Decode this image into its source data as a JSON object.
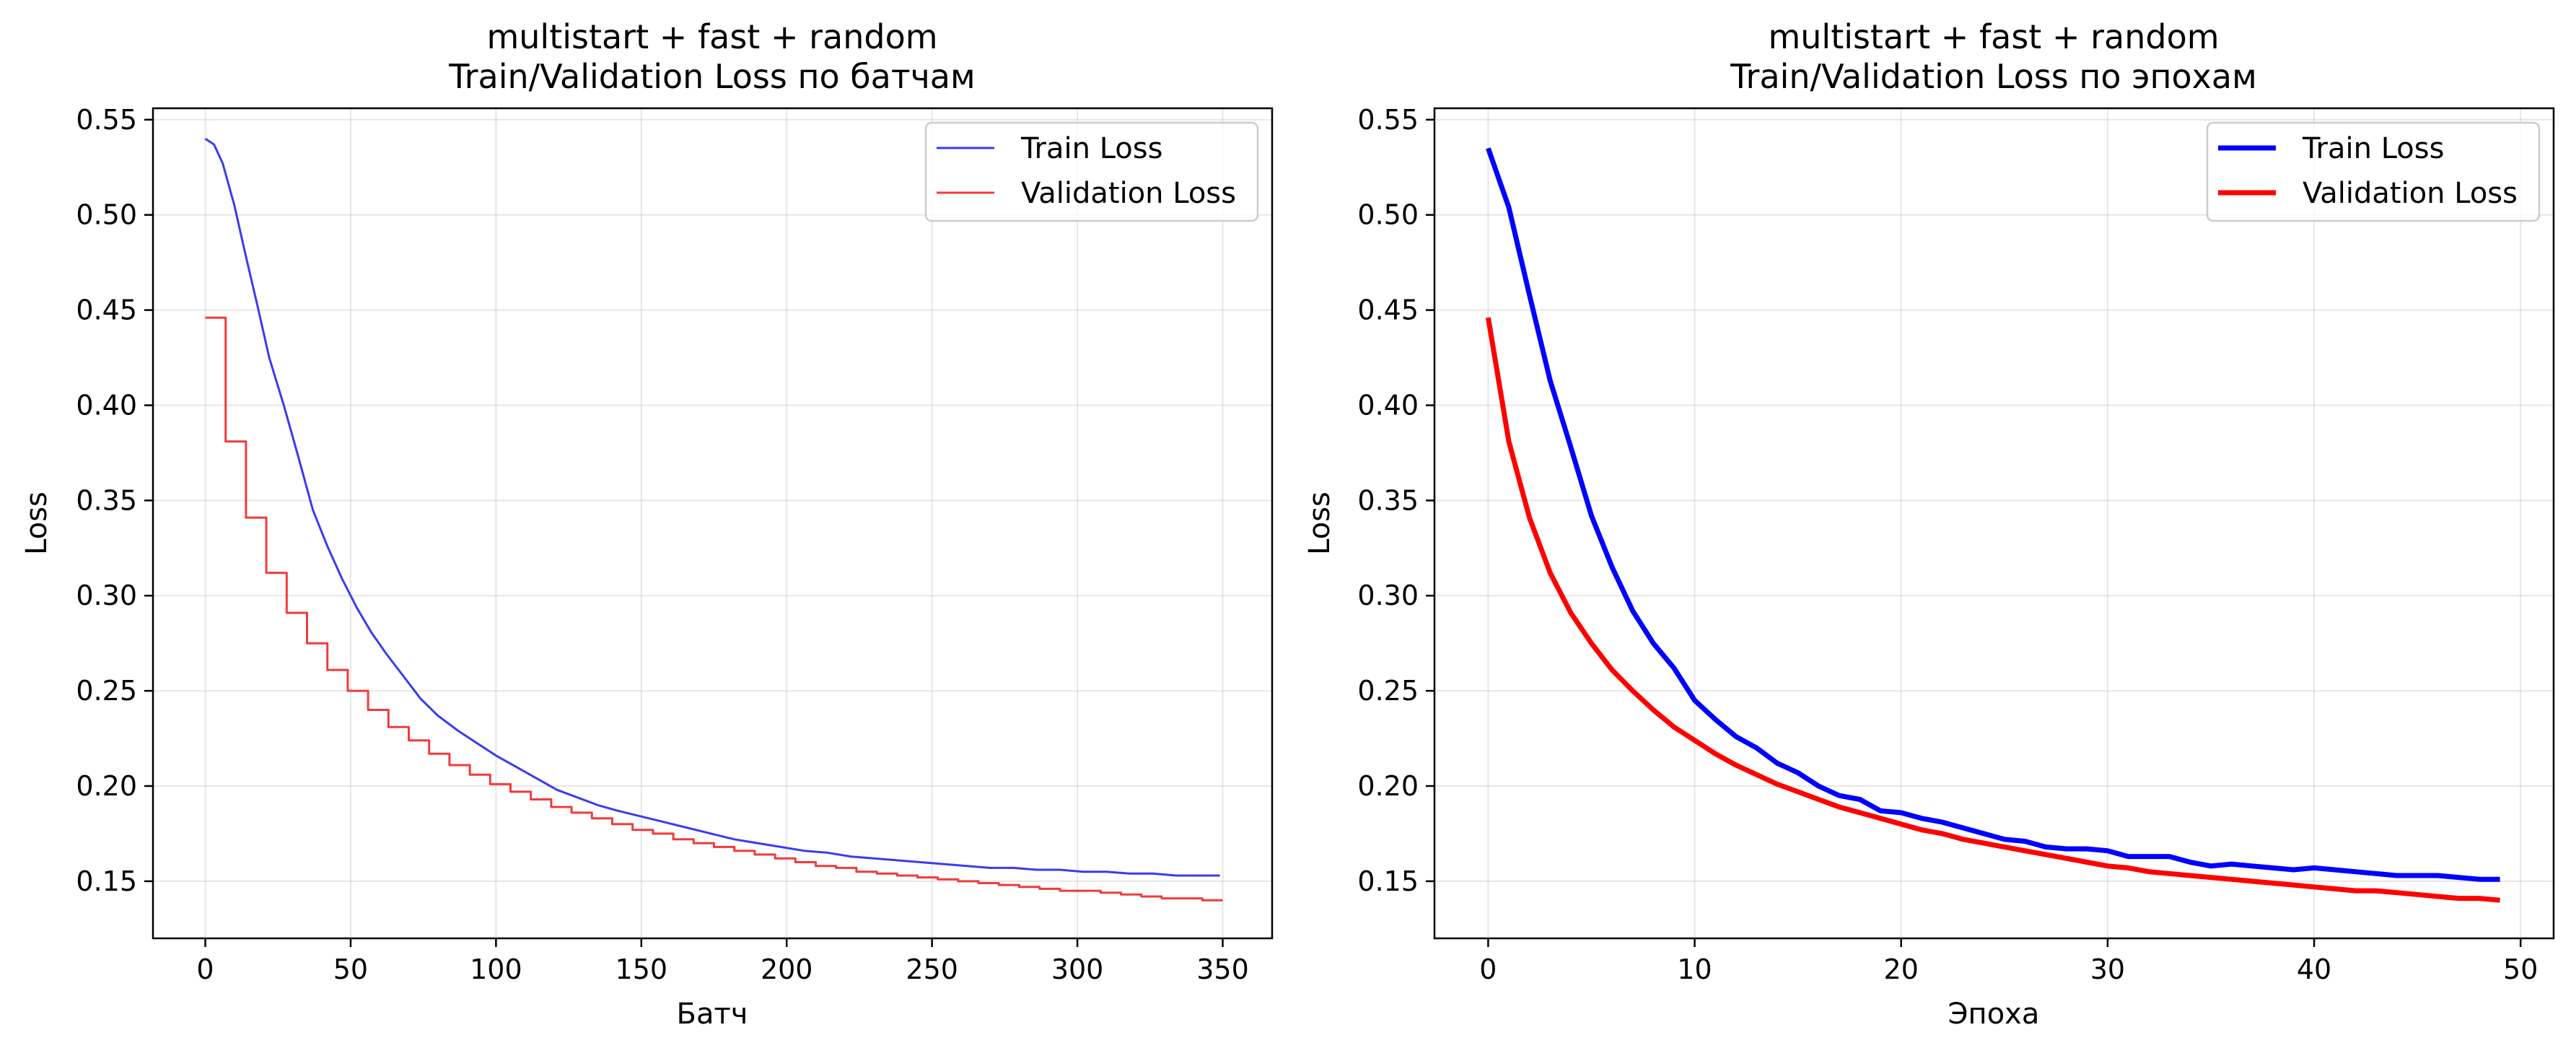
{
  "chart_data": [
    {
      "type": "line",
      "title": "multistart + fast + random\nTrain/Validation Loss по батчам",
      "title_lines": [
        "multistart + fast + random",
        "Train/Validation Loss по батчам"
      ],
      "xlabel": "Батч",
      "ylabel": "Loss",
      "xlim": [
        -18,
        367
      ],
      "ylim": [
        0.12,
        0.556
      ],
      "xticks": [
        0,
        50,
        100,
        150,
        200,
        250,
        300,
        350
      ],
      "xtick_labels": [
        "0",
        "50",
        "100",
        "150",
        "200",
        "250",
        "300",
        "350"
      ],
      "yticks": [
        0.15,
        0.2,
        0.25,
        0.3,
        0.35,
        0.4,
        0.45,
        0.5,
        0.55
      ],
      "ytick_labels": [
        "0.15",
        "0.20",
        "0.25",
        "0.30",
        "0.35",
        "0.40",
        "0.45",
        "0.50",
        "0.55"
      ],
      "grid": true,
      "legend_position": "top-right",
      "series": [
        {
          "name": "Train Loss",
          "color": "#3b3bf0",
          "style": "line",
          "x": [
            0,
            3,
            6,
            10,
            14,
            18,
            22,
            27,
            32,
            37,
            42,
            47,
            52,
            57,
            62,
            68,
            74,
            80,
            87,
            94,
            100,
            107,
            114,
            121,
            128,
            135,
            142,
            150,
            158,
            166,
            174,
            182,
            190,
            198,
            206,
            214,
            222,
            230,
            238,
            246,
            254,
            262,
            270,
            278,
            286,
            294,
            302,
            310,
            318,
            326,
            334,
            342,
            349
          ],
          "y": [
            0.54,
            0.537,
            0.527,
            0.505,
            0.478,
            0.452,
            0.425,
            0.4,
            0.373,
            0.345,
            0.326,
            0.309,
            0.294,
            0.281,
            0.27,
            0.258,
            0.246,
            0.237,
            0.229,
            0.222,
            0.216,
            0.21,
            0.204,
            0.198,
            0.194,
            0.19,
            0.187,
            0.184,
            0.181,
            0.178,
            0.175,
            0.172,
            0.17,
            0.168,
            0.166,
            0.165,
            0.163,
            0.162,
            0.161,
            0.16,
            0.159,
            0.158,
            0.157,
            0.157,
            0.156,
            0.156,
            0.155,
            0.155,
            0.154,
            0.154,
            0.153,
            0.153,
            0.153
          ]
        },
        {
          "name": "Validation Loss",
          "color": "#f03b3b",
          "style": "step",
          "x": [
            0,
            7,
            14,
            21,
            28,
            35,
            42,
            49,
            56,
            63,
            70,
            77,
            84,
            91,
            98,
            105,
            112,
            119,
            126,
            133,
            140,
            147,
            154,
            161,
            168,
            175,
            182,
            189,
            196,
            203,
            210,
            217,
            224,
            231,
            238,
            245,
            252,
            259,
            266,
            273,
            280,
            287,
            294,
            301,
            308,
            315,
            322,
            329,
            336,
            343,
            350
          ],
          "y": [
            0.446,
            0.381,
            0.341,
            0.312,
            0.291,
            0.275,
            0.261,
            0.25,
            0.24,
            0.231,
            0.224,
            0.217,
            0.211,
            0.206,
            0.201,
            0.197,
            0.193,
            0.189,
            0.186,
            0.183,
            0.18,
            0.177,
            0.175,
            0.172,
            0.17,
            0.168,
            0.166,
            0.164,
            0.162,
            0.16,
            0.158,
            0.157,
            0.155,
            0.154,
            0.153,
            0.152,
            0.151,
            0.15,
            0.149,
            0.148,
            0.147,
            0.146,
            0.145,
            0.145,
            0.144,
            0.143,
            0.142,
            0.141,
            0.141,
            0.14,
            0.14
          ]
        }
      ]
    },
    {
      "type": "line",
      "title": "multistart + fast + random\nTrain/Validation Loss по эпохам",
      "title_lines": [
        "multistart + fast + random",
        "Train/Validation Loss по эпохам"
      ],
      "xlabel": "Эпоха",
      "ylabel": "Loss",
      "xlim": [
        -2.6,
        51.6
      ],
      "ylim": [
        0.12,
        0.556
      ],
      "xticks": [
        0,
        10,
        20,
        30,
        40,
        50
      ],
      "xtick_labels": [
        "0",
        "10",
        "20",
        "30",
        "40",
        "50"
      ],
      "yticks": [
        0.15,
        0.2,
        0.25,
        0.3,
        0.35,
        0.4,
        0.45,
        0.5,
        0.55
      ],
      "ytick_labels": [
        "0.15",
        "0.20",
        "0.25",
        "0.30",
        "0.35",
        "0.40",
        "0.45",
        "0.50",
        "0.55"
      ],
      "grid": true,
      "legend_position": "top-right",
      "series": [
        {
          "name": "Train Loss",
          "color": "#0000ff",
          "style": "line",
          "x": [
            0,
            1,
            2,
            3,
            4,
            5,
            6,
            7,
            8,
            9,
            10,
            11,
            12,
            13,
            14,
            15,
            16,
            17,
            18,
            19,
            20,
            21,
            22,
            23,
            24,
            25,
            26,
            27,
            28,
            29,
            30,
            31,
            32,
            33,
            34,
            35,
            36,
            37,
            38,
            39,
            40,
            41,
            42,
            43,
            44,
            45,
            46,
            47,
            48,
            49
          ],
          "y": [
            0.535,
            0.504,
            0.458,
            0.413,
            0.378,
            0.342,
            0.315,
            0.292,
            0.275,
            0.262,
            0.245,
            0.235,
            0.226,
            0.22,
            0.212,
            0.207,
            0.2,
            0.195,
            0.193,
            0.187,
            0.186,
            0.183,
            0.181,
            0.178,
            0.175,
            0.172,
            0.171,
            0.168,
            0.167,
            0.167,
            0.166,
            0.163,
            0.163,
            0.163,
            0.16,
            0.158,
            0.159,
            0.158,
            0.157,
            0.156,
            0.157,
            0.156,
            0.155,
            0.154,
            0.153,
            0.153,
            0.153,
            0.152,
            0.151,
            0.151
          ]
        },
        {
          "name": "Validation Loss",
          "color": "#ff0000",
          "style": "line",
          "x": [
            0,
            1,
            2,
            3,
            4,
            5,
            6,
            7,
            8,
            9,
            10,
            11,
            12,
            13,
            14,
            15,
            16,
            17,
            18,
            19,
            20,
            21,
            22,
            23,
            24,
            25,
            26,
            27,
            28,
            29,
            30,
            31,
            32,
            33,
            34,
            35,
            36,
            37,
            38,
            39,
            40,
            41,
            42,
            43,
            44,
            45,
            46,
            47,
            48,
            49
          ],
          "y": [
            0.446,
            0.381,
            0.341,
            0.312,
            0.291,
            0.275,
            0.261,
            0.25,
            0.24,
            0.231,
            0.224,
            0.217,
            0.211,
            0.206,
            0.201,
            0.197,
            0.193,
            0.189,
            0.186,
            0.183,
            0.18,
            0.177,
            0.175,
            0.172,
            0.17,
            0.168,
            0.166,
            0.164,
            0.162,
            0.16,
            0.158,
            0.157,
            0.155,
            0.154,
            0.153,
            0.152,
            0.151,
            0.15,
            0.149,
            0.148,
            0.147,
            0.146,
            0.145,
            0.145,
            0.144,
            0.143,
            0.142,
            0.141,
            0.141,
            0.14
          ]
        }
      ]
    }
  ]
}
